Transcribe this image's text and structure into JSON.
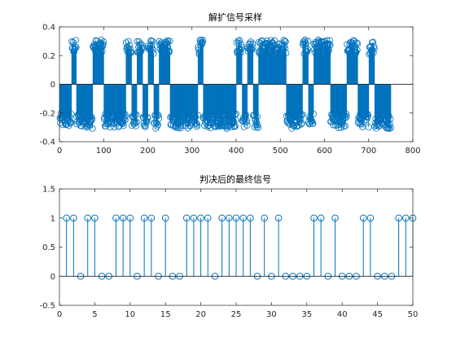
{
  "chart_data": [
    {
      "type": "bar",
      "title": "解扩信号采样",
      "xlim": [
        0,
        800
      ],
      "ylim": [
        -0.4,
        0.4
      ],
      "xticks": [
        0,
        100,
        200,
        300,
        400,
        500,
        600,
        700,
        800
      ],
      "yticks": [
        -0.4,
        -0.2,
        0,
        0.2,
        0.4
      ],
      "xtick_labels": [
        "0",
        "100",
        "200",
        "300",
        "400",
        "500",
        "600",
        "700",
        "800"
      ],
      "ytick_labels": [
        "-0.4",
        "-0.2",
        "0",
        "0.2",
        "0.4"
      ],
      "markers": "circle",
      "n_samples": 750,
      "segments": [
        {
          "start": 1,
          "end": 15,
          "level": -0.25
        },
        {
          "start": 16,
          "end": 27,
          "level": -0.25
        },
        {
          "start": 28,
          "end": 38,
          "level": 0.26
        },
        {
          "start": 39,
          "end": 52,
          "level": -0.25
        },
        {
          "start": 53,
          "end": 64,
          "level": -0.25
        },
        {
          "start": 65,
          "end": 75,
          "level": -0.26
        },
        {
          "start": 76,
          "end": 88,
          "level": 0.26
        },
        {
          "start": 89,
          "end": 100,
          "level": 0.26
        },
        {
          "start": 101,
          "end": 113,
          "level": -0.25
        },
        {
          "start": 114,
          "end": 125,
          "level": -0.25
        },
        {
          "start": 126,
          "end": 138,
          "level": -0.26
        },
        {
          "start": 139,
          "end": 150,
          "level": -0.25
        },
        {
          "start": 151,
          "end": 163,
          "level": 0.26
        },
        {
          "start": 164,
          "end": 175,
          "level": -0.25
        },
        {
          "start": 176,
          "end": 188,
          "level": 0.25
        },
        {
          "start": 189,
          "end": 200,
          "level": -0.25
        },
        {
          "start": 201,
          "end": 213,
          "level": 0.26
        },
        {
          "start": 214,
          "end": 225,
          "level": -0.26
        },
        {
          "start": 226,
          "end": 238,
          "level": 0.25
        },
        {
          "start": 239,
          "end": 250,
          "level": 0.26
        },
        {
          "start": 251,
          "end": 263,
          "level": -0.26
        },
        {
          "start": 264,
          "end": 275,
          "level": -0.26
        },
        {
          "start": 276,
          "end": 288,
          "level": -0.25
        },
        {
          "start": 289,
          "end": 300,
          "level": -0.26
        },
        {
          "start": 301,
          "end": 313,
          "level": -0.25
        },
        {
          "start": 314,
          "end": 325,
          "level": 0.26
        },
        {
          "start": 326,
          "end": 338,
          "level": -0.25
        },
        {
          "start": 339,
          "end": 350,
          "level": -0.26
        },
        {
          "start": 351,
          "end": 363,
          "level": -0.25
        },
        {
          "start": 364,
          "end": 375,
          "level": -0.25
        },
        {
          "start": 376,
          "end": 388,
          "level": -0.26
        },
        {
          "start": 389,
          "end": 400,
          "level": -0.25
        },
        {
          "start": 401,
          "end": 413,
          "level": 0.26
        },
        {
          "start": 414,
          "end": 425,
          "level": -0.25
        },
        {
          "start": 426,
          "end": 438,
          "level": 0.25
        },
        {
          "start": 439,
          "end": 450,
          "level": -0.26
        },
        {
          "start": 451,
          "end": 463,
          "level": 0.26
        },
        {
          "start": 464,
          "end": 475,
          "level": 0.26
        },
        {
          "start": 476,
          "end": 488,
          "level": 0.26
        },
        {
          "start": 489,
          "end": 500,
          "level": 0.25
        },
        {
          "start": 501,
          "end": 513,
          "level": 0.26
        },
        {
          "start": 514,
          "end": 525,
          "level": -0.25
        },
        {
          "start": 526,
          "end": 538,
          "level": -0.26
        },
        {
          "start": 539,
          "end": 550,
          "level": -0.25
        },
        {
          "start": 551,
          "end": 563,
          "level": 0.26
        },
        {
          "start": 564,
          "end": 575,
          "level": -0.25
        },
        {
          "start": 576,
          "end": 588,
          "level": 0.26
        },
        {
          "start": 589,
          "end": 600,
          "level": 0.25
        },
        {
          "start": 601,
          "end": 613,
          "level": 0.26
        },
        {
          "start": 614,
          "end": 625,
          "level": -0.25
        },
        {
          "start": 626,
          "end": 638,
          "level": -0.26
        },
        {
          "start": 639,
          "end": 650,
          "level": -0.25
        },
        {
          "start": 651,
          "end": 663,
          "level": 0.25
        },
        {
          "start": 664,
          "end": 675,
          "level": 0.26
        },
        {
          "start": 676,
          "end": 688,
          "level": -0.25
        },
        {
          "start": 689,
          "end": 700,
          "level": -0.25
        },
        {
          "start": 701,
          "end": 713,
          "level": 0.26
        },
        {
          "start": 714,
          "end": 725,
          "level": -0.26
        },
        {
          "start": 726,
          "end": 738,
          "level": -0.25
        },
        {
          "start": 739,
          "end": 750,
          "level": -0.26
        }
      ],
      "noise_amplitude": 0.05,
      "color": "#0072BD"
    },
    {
      "type": "stem",
      "title": "判决后的最终信号",
      "xlim": [
        0,
        50
      ],
      "ylim": [
        -0.5,
        1.5
      ],
      "xticks": [
        0,
        5,
        10,
        15,
        20,
        25,
        30,
        35,
        40,
        45,
        50
      ],
      "yticks": [
        -0.5,
        0,
        0.5,
        1,
        1.5
      ],
      "xtick_labels": [
        "0",
        "5",
        "10",
        "15",
        "20",
        "25",
        "30",
        "35",
        "40",
        "45",
        "50"
      ],
      "ytick_labels": [
        "-0.5",
        "0",
        "0.5",
        "1",
        "1.5"
      ],
      "x": [
        1,
        2,
        3,
        4,
        5,
        6,
        7,
        8,
        9,
        10,
        11,
        12,
        13,
        14,
        15,
        16,
        17,
        18,
        19,
        20,
        21,
        22,
        23,
        24,
        25,
        26,
        27,
        28,
        29,
        30,
        31,
        32,
        33,
        34,
        35,
        36,
        37,
        38,
        39,
        40,
        41,
        42,
        43,
        44,
        45,
        46,
        47,
        48,
        49,
        50
      ],
      "values": [
        1,
        1,
        0,
        1,
        1,
        0,
        0,
        1,
        1,
        1,
        0,
        1,
        1,
        0,
        1,
        0,
        0,
        1,
        1,
        1,
        1,
        0,
        1,
        1,
        1,
        1,
        1,
        0,
        1,
        0,
        1,
        0,
        0,
        0,
        0,
        1,
        1,
        0,
        1,
        0,
        0,
        0,
        1,
        1,
        0,
        0,
        0,
        1,
        1,
        1
      ],
      "color": "#0072BD"
    }
  ]
}
